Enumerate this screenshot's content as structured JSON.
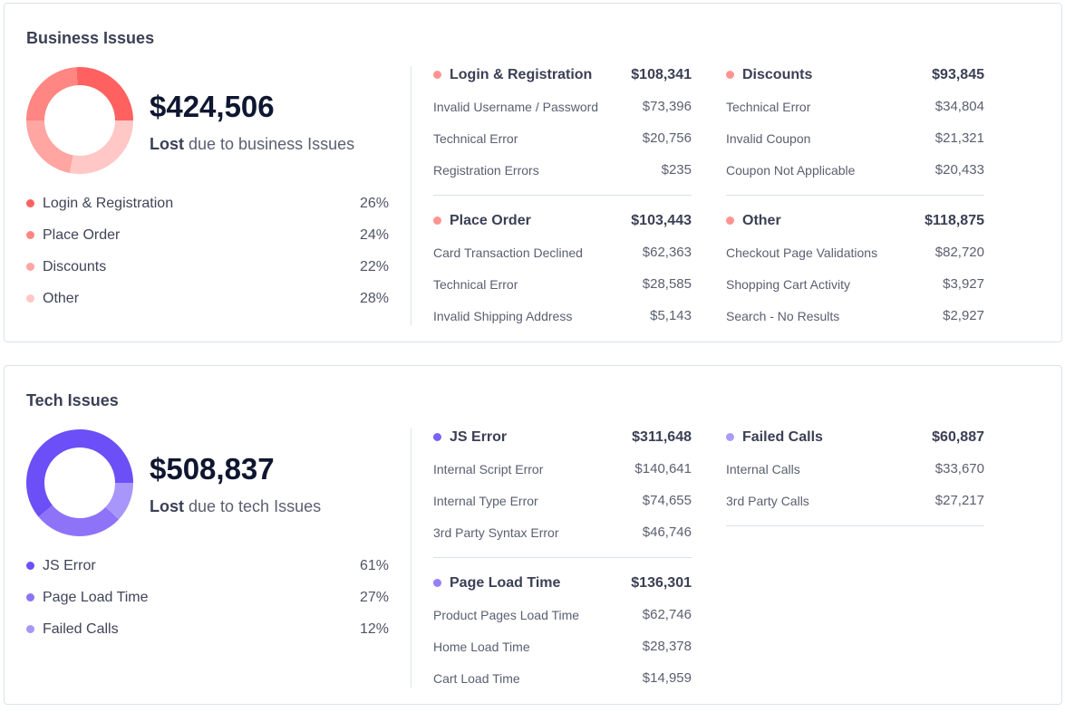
{
  "business": {
    "title": "Business Issues",
    "total": "$424,506",
    "lost_label": "Lost",
    "lost_suffix": " due to business Issues",
    "legend": [
      {
        "label": "Login & Registration",
        "pct": "26%",
        "color": "#ff6161"
      },
      {
        "label": "Place Order",
        "pct": "24%",
        "color": "#ff8682"
      },
      {
        "label": "Discounts",
        "pct": "22%",
        "color": "#ffa5a2"
      },
      {
        "label": "Other",
        "pct": "28%",
        "color": "#ffc7c5"
      }
    ],
    "groups": [
      {
        "name": "Login & Registration",
        "amount": "$108,341",
        "color": "#ff9490",
        "items": [
          {
            "label": "Invalid Username / Password",
            "amount": "$73,396"
          },
          {
            "label": "Technical Error",
            "amount": "$20,756"
          },
          {
            "label": "Registration Errors",
            "amount": "$235"
          }
        ]
      },
      {
        "name": "Place Order",
        "amount": "$103,443",
        "color": "#ff9490",
        "items": [
          {
            "label": "Card Transaction Declined",
            "amount": "$62,363"
          },
          {
            "label": "Technical Error",
            "amount": "$28,585"
          },
          {
            "label": "Invalid Shipping Address",
            "amount": "$5,143"
          }
        ]
      },
      {
        "name": "Discounts",
        "amount": "$93,845",
        "color": "#ff9490",
        "items": [
          {
            "label": "Technical Error",
            "amount": "$34,804"
          },
          {
            "label": "Invalid Coupon",
            "amount": "$21,321"
          },
          {
            "label": "Coupon Not Applicable",
            "amount": "$20,433"
          }
        ]
      },
      {
        "name": "Other",
        "amount": "$118,875",
        "color": "#ff9490",
        "items": [
          {
            "label": "Checkout Page Validations",
            "amount": "$82,720"
          },
          {
            "label": "Shopping Cart Activity",
            "amount": "$3,927"
          },
          {
            "label": "Search - No Results",
            "amount": "$2,927"
          }
        ]
      }
    ]
  },
  "tech": {
    "title": "Tech Issues",
    "total": "$508,837",
    "lost_label": "Lost",
    "lost_suffix": " due to tech Issues",
    "legend": [
      {
        "label": "JS Error",
        "pct": "61%",
        "color": "#6c4ff6"
      },
      {
        "label": "Page Load Time",
        "pct": "27%",
        "color": "#8e73f8"
      },
      {
        "label": "Failed Calls",
        "pct": "12%",
        "color": "#a896fa"
      }
    ],
    "groups": [
      {
        "name": "JS Error",
        "amount": "$311,648",
        "color": "#7b62f7",
        "items": [
          {
            "label": "Internal Script Error",
            "amount": "$140,641"
          },
          {
            "label": "Internal Type Error",
            "amount": "$74,655"
          },
          {
            "label": "3rd Party Syntax Error",
            "amount": "$46,746"
          }
        ]
      },
      {
        "name": "Page Load Time",
        "amount": "$136,301",
        "color": "#9580f8",
        "items": [
          {
            "label": "Product Pages Load Time",
            "amount": "$62,746"
          },
          {
            "label": "Home Load Time",
            "amount": "$28,378"
          },
          {
            "label": "Cart Load Time",
            "amount": "$14,959"
          }
        ]
      },
      {
        "name": "Failed Calls",
        "amount": "$60,887",
        "color": "#ab9bfa",
        "items": [
          {
            "label": "Internal Calls",
            "amount": "$33,670"
          },
          {
            "label": "3rd Party Calls",
            "amount": "$27,217"
          }
        ]
      }
    ]
  },
  "chart_data": [
    {
      "type": "pie",
      "categories": [
        "Login & Registration",
        "Place Order",
        "Discounts",
        "Other"
      ],
      "values": [
        26,
        24,
        22,
        28
      ]
    },
    {
      "type": "pie",
      "categories": [
        "JS Error",
        "Page Load Time",
        "Failed Calls"
      ],
      "values": [
        61,
        27,
        12
      ]
    }
  ]
}
